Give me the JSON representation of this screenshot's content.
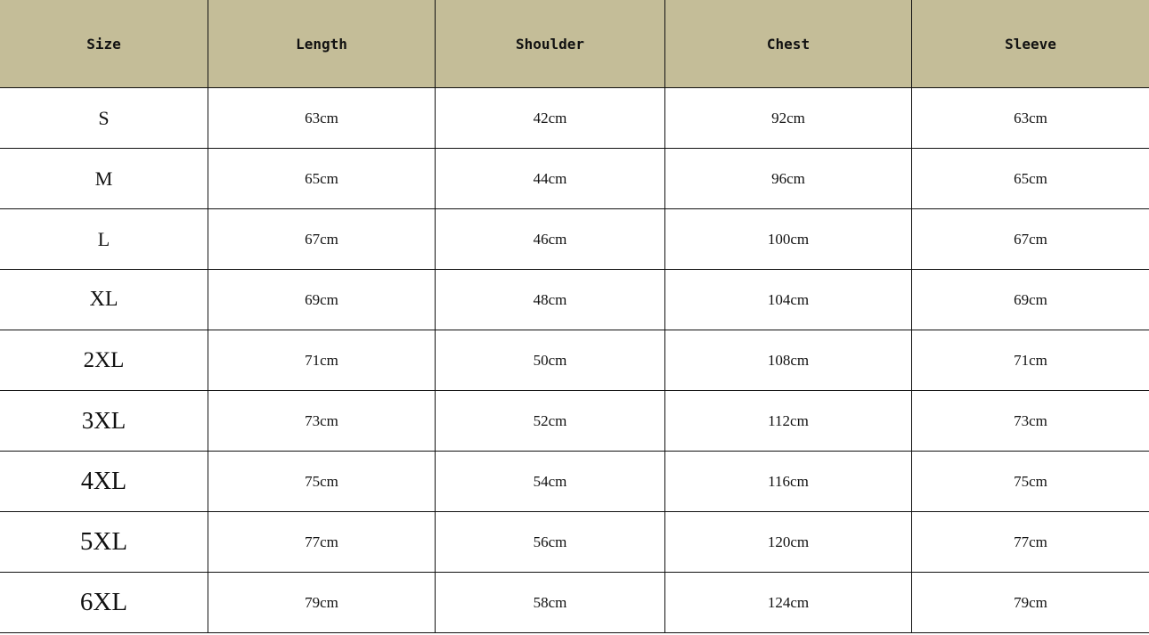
{
  "header_color": "#c4bd98",
  "columns": [
    "Size",
    "Length",
    "Shoulder",
    "Chest",
    "Sleeve"
  ],
  "rows": [
    [
      "S",
      "63cm",
      "42cm",
      "92cm",
      "63cm"
    ],
    [
      "M",
      "65cm",
      "44cm",
      "96cm",
      "65cm"
    ],
    [
      "L",
      "67cm",
      "46cm",
      "100cm",
      "67cm"
    ],
    [
      "XL",
      "69cm",
      "48cm",
      "104cm",
      "69cm"
    ],
    [
      "2XL",
      "71cm",
      "50cm",
      "108cm",
      "71cm"
    ],
    [
      "3XL",
      "73cm",
      "52cm",
      "112cm",
      "73cm"
    ],
    [
      "4XL",
      "75cm",
      "54cm",
      "116cm",
      "75cm"
    ],
    [
      "5XL",
      "77cm",
      "56cm",
      "120cm",
      "77cm"
    ],
    [
      "6XL",
      "79cm",
      "58cm",
      "124cm",
      "79cm"
    ]
  ]
}
